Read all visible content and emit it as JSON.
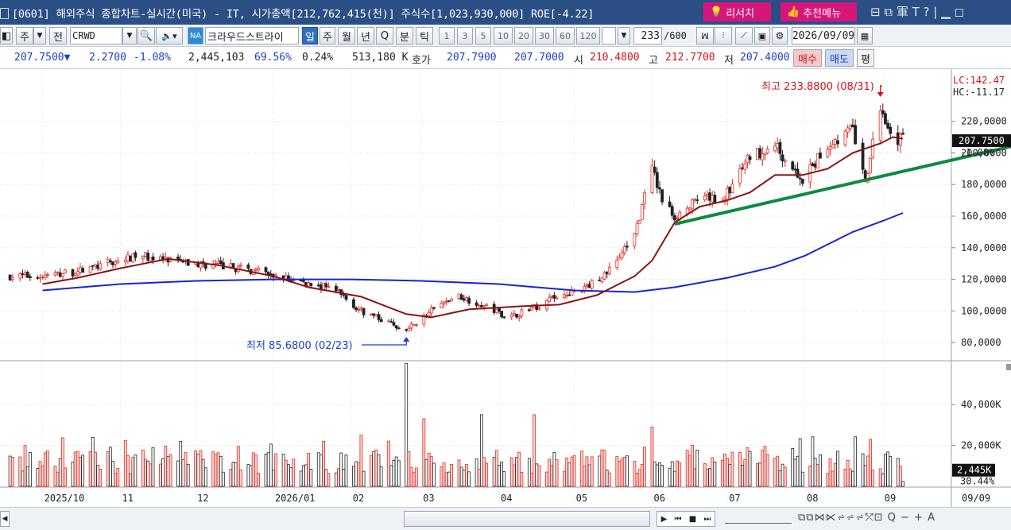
{
  "titlebar": {
    "title": "[0601] 해외주식 종합차트-실시간(미국) - IT, 시가총액[212,762,415(천)] 주식수[1,023,930,000] ROE[-4.22]",
    "research_label": "리서치",
    "recommend_label": "추천메뉴",
    "window_controls": "⊟ ⧉ 軍 T ? | ▁ ◻"
  },
  "toolbar": {
    "main_label": "주",
    "all_label": "전",
    "symbol": "CRWD",
    "na_badge": "NA",
    "stock_name": "크라우드스트라이",
    "periods": [
      "일",
      "주",
      "월",
      "년",
      "Q",
      "분",
      "틱"
    ],
    "intervals": [
      "1",
      "3",
      "5",
      "10",
      "20",
      "30",
      "60",
      "120"
    ],
    "count": "233",
    "count_total": "/600",
    "date": "2026/09/09"
  },
  "quote": {
    "price": "207.7500▼",
    "change": "2.2700",
    "change_pct": "-1.08%",
    "volume": "2,445,103",
    "ratio1": "69.56%",
    "ratio2": "0.24%",
    "amount": "513,180 K",
    "hoga_label": "호가",
    "ask": "207.7900",
    "bid": "207.7000",
    "open_label": "시",
    "open": "210.4800",
    "high_label": "고",
    "high": "212.7700",
    "low_label": "저",
    "low": "207.4000",
    "buy_label": "매수",
    "sell_label": "매도",
    "avg_label": "평"
  },
  "chart_data": {
    "type": "candlestick",
    "x_labels": [
      "2025/10",
      "11",
      "12",
      "2026/01",
      "02",
      "03",
      "04",
      "05",
      "06",
      "07",
      "08",
      "09",
      "09/09"
    ],
    "price_axis": {
      "ticks": [
        "220,0000",
        "200,0000",
        "180,0000",
        "160,0000",
        "140,0000",
        "120,0000",
        "100,0000",
        "80,0000"
      ],
      "tick_values": [
        220,
        200,
        180,
        160,
        140,
        120,
        100,
        80
      ],
      "ylim": [
        69,
        253
      ]
    },
    "lc_label": "LC:142.47",
    "hc_label": "HC:-11.17",
    "current_price_label": "207.7500",
    "current_change_label": "-1.08%",
    "current_price": 207.75,
    "max_annotation": "최고 233.8800 (08/31)",
    "min_annotation": "최저 85.6800 (02/23)",
    "price_points": [
      [
        "2025/10/01",
        122
      ],
      [
        "2025/10/15",
        125
      ],
      [
        "2025/11/01",
        132
      ],
      [
        "2025/11/10",
        135
      ],
      [
        "2025/11/25",
        130
      ],
      [
        "2025/12/10",
        129
      ],
      [
        "2025/12/25",
        125
      ],
      [
        "2026/01/10",
        119
      ],
      [
        "2026/01/25",
        114
      ],
      [
        "2026/02/05",
        100
      ],
      [
        "2026/02/23",
        88
      ],
      [
        "2026/03/05",
        100
      ],
      [
        "2026/03/15",
        110
      ],
      [
        "2026/03/25",
        104
      ],
      [
        "2026/04/05",
        96
      ],
      [
        "2026/04/15",
        102
      ],
      [
        "2026/04/25",
        110
      ],
      [
        "2026/05/05",
        114
      ],
      [
        "2026/05/15",
        126
      ],
      [
        "2026/05/25",
        148
      ],
      [
        "2026/06/01",
        190
      ],
      [
        "2026/06/05",
        170
      ],
      [
        "2026/06/10",
        160
      ],
      [
        "2026/06/20",
        170
      ],
      [
        "2026/06/30",
        172
      ],
      [
        "2026/07/10",
        198
      ],
      [
        "2026/07/20",
        205
      ],
      [
        "2026/07/31",
        182
      ],
      [
        "2026/08/10",
        205
      ],
      [
        "2026/08/20",
        215
      ],
      [
        "2026/08/25",
        180
      ],
      [
        "2026/08/31",
        230
      ],
      [
        "2026/09/05",
        210
      ],
      [
        "2026/09/09",
        207.75
      ]
    ],
    "ma_short_points": [
      [
        "2025/10/01",
        117
      ],
      [
        "2025/10/15",
        121
      ],
      [
        "2025/11/01",
        127
      ],
      [
        "2025/11/20",
        133
      ],
      [
        "2025/12/10",
        129
      ],
      [
        "2026/01/01",
        122
      ],
      [
        "2026/01/15",
        115
      ],
      [
        "2026/02/05",
        109
      ],
      [
        "2026/02/23",
        98
      ],
      [
        "2026/03/05",
        96
      ],
      [
        "2026/03/20",
        101
      ],
      [
        "2026/04/10",
        103
      ],
      [
        "2026/04/25",
        104
      ],
      [
        "2026/05/10",
        110
      ],
      [
        "2026/05/25",
        122
      ],
      [
        "2026/06/01",
        132
      ],
      [
        "2026/06/10",
        156
      ],
      [
        "2026/06/20",
        166
      ],
      [
        "2026/07/01",
        170
      ],
      [
        "2026/07/10",
        175
      ],
      [
        "2026/07/20",
        186
      ],
      [
        "2026/07/31",
        186
      ],
      [
        "2026/08/10",
        190
      ],
      [
        "2026/08/20",
        200
      ],
      [
        "2026/08/31",
        206
      ],
      [
        "2026/09/05",
        210
      ],
      [
        "2026/09/09",
        209
      ]
    ],
    "ma_long_points": [
      [
        "2025/10/01",
        113
      ],
      [
        "2025/11/01",
        117
      ],
      [
        "2025/12/01",
        119
      ],
      [
        "2026/01/01",
        120
      ],
      [
        "2026/02/01",
        120
      ],
      [
        "2026/03/01",
        119
      ],
      [
        "2026/04/01",
        117
      ],
      [
        "2026/05/01",
        113
      ],
      [
        "2026/05/25",
        112
      ],
      [
        "2026/06/10",
        115
      ],
      [
        "2026/07/01",
        121
      ],
      [
        "2026/07/20",
        128
      ],
      [
        "2026/08/01",
        135
      ],
      [
        "2026/08/20",
        150
      ],
      [
        "2026/09/01",
        157
      ],
      [
        "2026/09/09",
        162
      ]
    ],
    "trendline": [
      [
        "2026/06/10",
        155
      ],
      [
        "2026/09/30",
        196
      ]
    ],
    "volume_axis": {
      "ticks": [
        "40,000K",
        "20,000K"
      ],
      "tick_values": [
        40000,
        20000
      ],
      "ymax": 61000
    },
    "current_volume_label": "2,445K",
    "current_volume_pct": "30.44%",
    "current_volume": 2445,
    "volume_peaks": [
      [
        "2026/02/23",
        60000
      ],
      [
        "2026/03/02",
        33000
      ],
      [
        "2026/03/25",
        35000
      ],
      [
        "2026/04/15",
        35000
      ],
      [
        "2026/06/01",
        29000
      ],
      [
        "2026/02/05",
        25000
      ],
      [
        "2026/08/27",
        23000
      ],
      [
        "2025/11/25",
        22000
      ]
    ],
    "colors": {
      "up": "#e8291f",
      "down": "#222222",
      "ma_short": "#8b1414",
      "ma_long": "#1a22d8",
      "trend": "#0d8a3f"
    }
  }
}
